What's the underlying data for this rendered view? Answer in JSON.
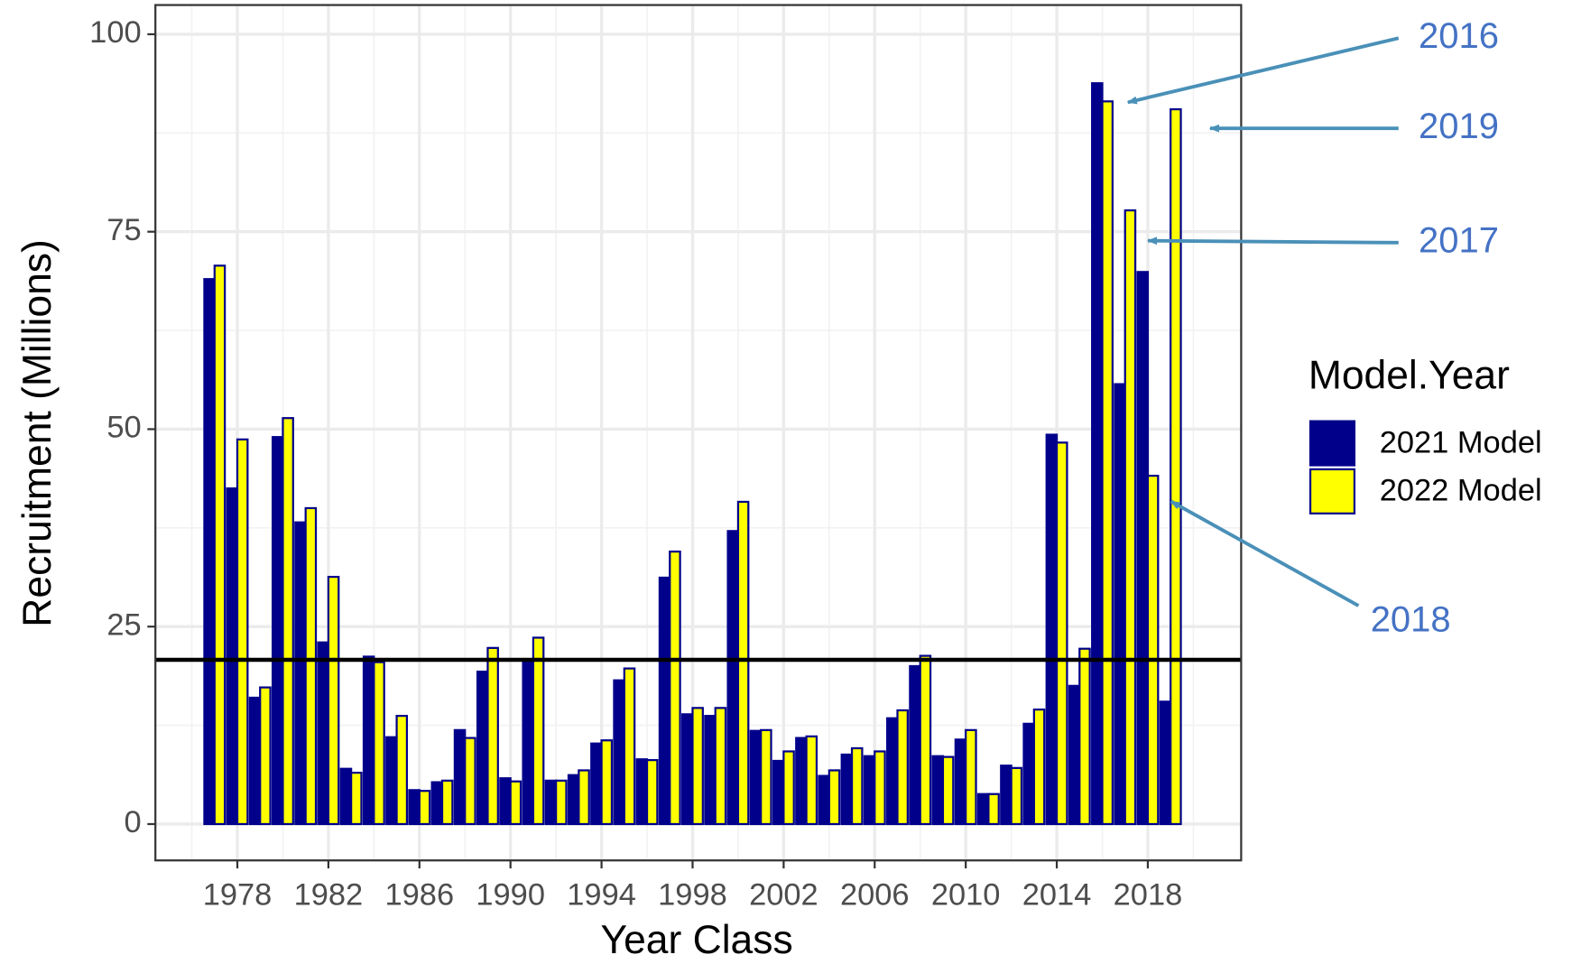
{
  "chart_data": {
    "type": "bar",
    "x_label": "Year Class",
    "y_label": "Recruitment (Millions)",
    "x": [
      1977,
      1978,
      1979,
      1980,
      1981,
      1982,
      1983,
      1984,
      1985,
      1986,
      1987,
      1988,
      1989,
      1990,
      1991,
      1992,
      1993,
      1994,
      1995,
      1996,
      1997,
      1998,
      1999,
      2000,
      2001,
      2002,
      2003,
      2004,
      2005,
      2006,
      2007,
      2008,
      2009,
      2010,
      2011,
      2012,
      2013,
      2014,
      2015,
      2016,
      2017,
      2018,
      2019
    ],
    "series": [
      {
        "name": "2021 Model",
        "color": "#00008b",
        "values": [
          69,
          42.5,
          16,
          49,
          38.2,
          23,
          7,
          21.2,
          11,
          4.3,
          5.3,
          11.9,
          19.3,
          5.8,
          20.8,
          5.5,
          6.2,
          10.2,
          18.2,
          8.2,
          31.2,
          13.9,
          13.7,
          37.1,
          11.8,
          8,
          10.9,
          6.1,
          8.8,
          8.6,
          13.4,
          20,
          8.6,
          10.7,
          3.8,
          7.4,
          12.7,
          49.3,
          17.5,
          93.8,
          55.7,
          69.9,
          15.5
        ]
      },
      {
        "name": "2022 Model",
        "color": "#ffff00",
        "values": [
          70.7,
          48.7,
          17.3,
          51.4,
          40,
          31.3,
          6.5,
          20.5,
          13.7,
          4.2,
          5.5,
          10.9,
          22.3,
          5.4,
          23.6,
          5.5,
          6.8,
          10.6,
          19.7,
          8.1,
          34.5,
          14.7,
          14.7,
          40.8,
          11.9,
          9.2,
          11.1,
          6.8,
          9.6,
          9.2,
          14.4,
          21.3,
          8.5,
          11.9,
          3.8,
          7.1,
          14.5,
          48.3,
          22.2,
          91.5,
          77.7,
          44.1,
          90.5
        ]
      }
    ],
    "reference_line": 20.8,
    "legend_title": "Model.Year",
    "annotations": [
      "2016",
      "2019",
      "2017",
      "2018"
    ],
    "xlim": [
      1974.4,
      2022.1
    ],
    "ylim": [
      -4.6,
      103.7
    ],
    "xticks": [
      1978,
      1982,
      1986,
      1990,
      1994,
      1998,
      2002,
      2006,
      2010,
      2014,
      2018
    ],
    "yticks": [
      0,
      25,
      50,
      75,
      100
    ],
    "grid": true
  }
}
